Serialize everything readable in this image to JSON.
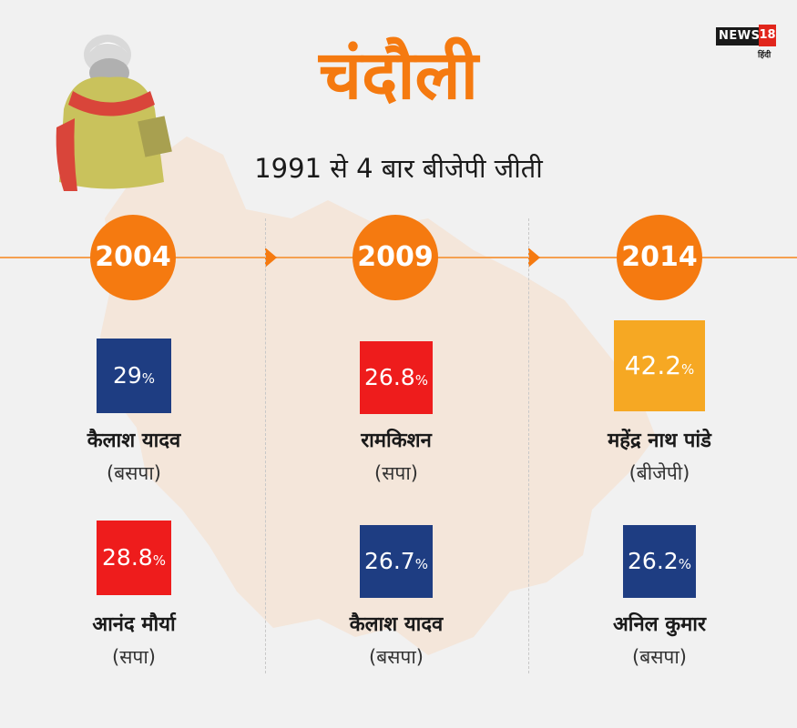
{
  "title": "चंदौली",
  "subtitle": "1991 से 4 बार बीजेपी जीती",
  "logo": {
    "brand": "NEWS",
    "number": "18",
    "sub": "हिंदी"
  },
  "icons": {
    "person": "person-with-scarf-icon",
    "map": "uttar-pradesh-map-icon",
    "arrow": "arrow-right-icon"
  },
  "colors": {
    "accent": "#f57a10",
    "blue": "#1e3d82",
    "red": "#ee1c1c",
    "gold": "#f6a823"
  },
  "columns": [
    {
      "year": "2004",
      "candidates": [
        {
          "value": "29",
          "unit": "%",
          "name": "कैलाश यादव",
          "party": "(बसपा)",
          "color": "#1e3d82"
        },
        {
          "value": "28.8",
          "unit": "%",
          "name": "आनंद मौर्या",
          "party": "(सपा)",
          "color": "#ee1c1c"
        }
      ]
    },
    {
      "year": "2009",
      "candidates": [
        {
          "value": "26.8",
          "unit": "%",
          "name": "रामकिशन",
          "party": "(सपा)",
          "color": "#ee1c1c"
        },
        {
          "value": "26.7",
          "unit": "%",
          "name": "कैलाश यादव",
          "party": "(बसपा)",
          "color": "#1e3d82"
        }
      ]
    },
    {
      "year": "2014",
      "candidates": [
        {
          "value": "42.2",
          "unit": "%",
          "name": "महेंद्र नाथ पांडे",
          "party": "(बीजेपी)",
          "color": "#f6a823"
        },
        {
          "value": "26.2",
          "unit": "%",
          "name": "अनिल कुमार",
          "party": "(बसपा)",
          "color": "#1e3d82"
        }
      ]
    }
  ]
}
